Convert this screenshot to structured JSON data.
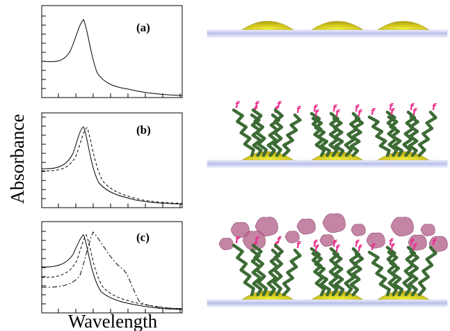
{
  "axis_labels": {
    "y": "Absorbance",
    "x": "Wavelength"
  },
  "panels": [
    {
      "label": "(a)"
    },
    {
      "label": "(b)"
    },
    {
      "label": "(c)"
    }
  ],
  "molecule_label": "f"
}
